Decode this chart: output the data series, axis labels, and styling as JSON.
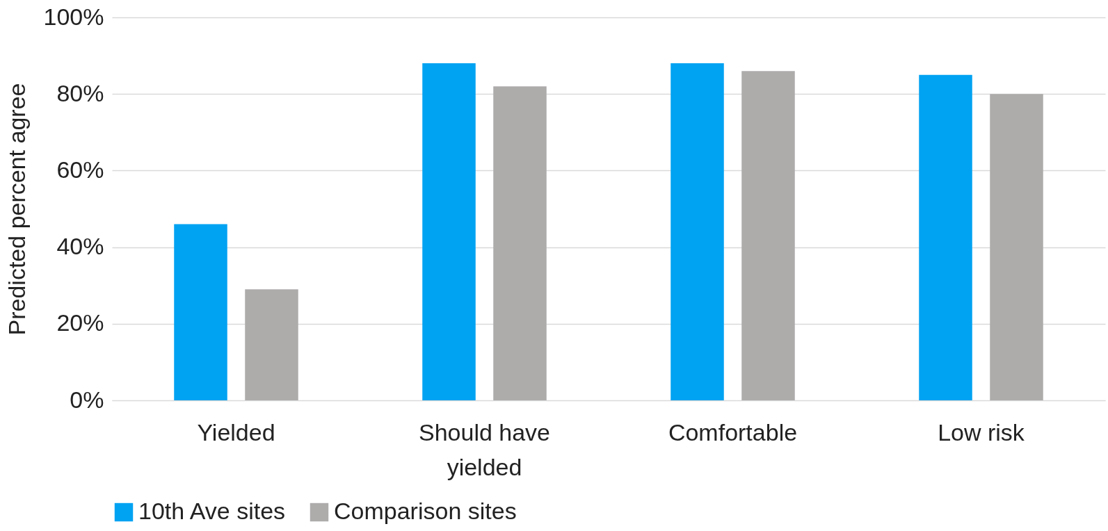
{
  "chart_data": {
    "type": "bar",
    "ylabel": "Predicted percent agree",
    "categories": [
      "Yielded",
      "Should have yielded",
      "Comfortable",
      "Low risk"
    ],
    "series": [
      {
        "name": "10th Ave sites",
        "color": "#00a2f2",
        "values": [
          46,
          88,
          88,
          85
        ]
      },
      {
        "name": "Comparison sites",
        "color": "#aeabab",
        "values": [
          29,
          82,
          86,
          80
        ]
      }
    ],
    "ylim": [
      0,
      100
    ],
    "yticks": [
      {
        "value": 0,
        "label": "0%"
      },
      {
        "value": 20,
        "label": "20%"
      },
      {
        "value": 40,
        "label": "40%"
      },
      {
        "value": 60,
        "label": "60%"
      },
      {
        "value": 80,
        "label": "80%"
      },
      {
        "value": 100,
        "label": "100%"
      }
    ],
    "grid": "y",
    "legend": "bottom"
  }
}
